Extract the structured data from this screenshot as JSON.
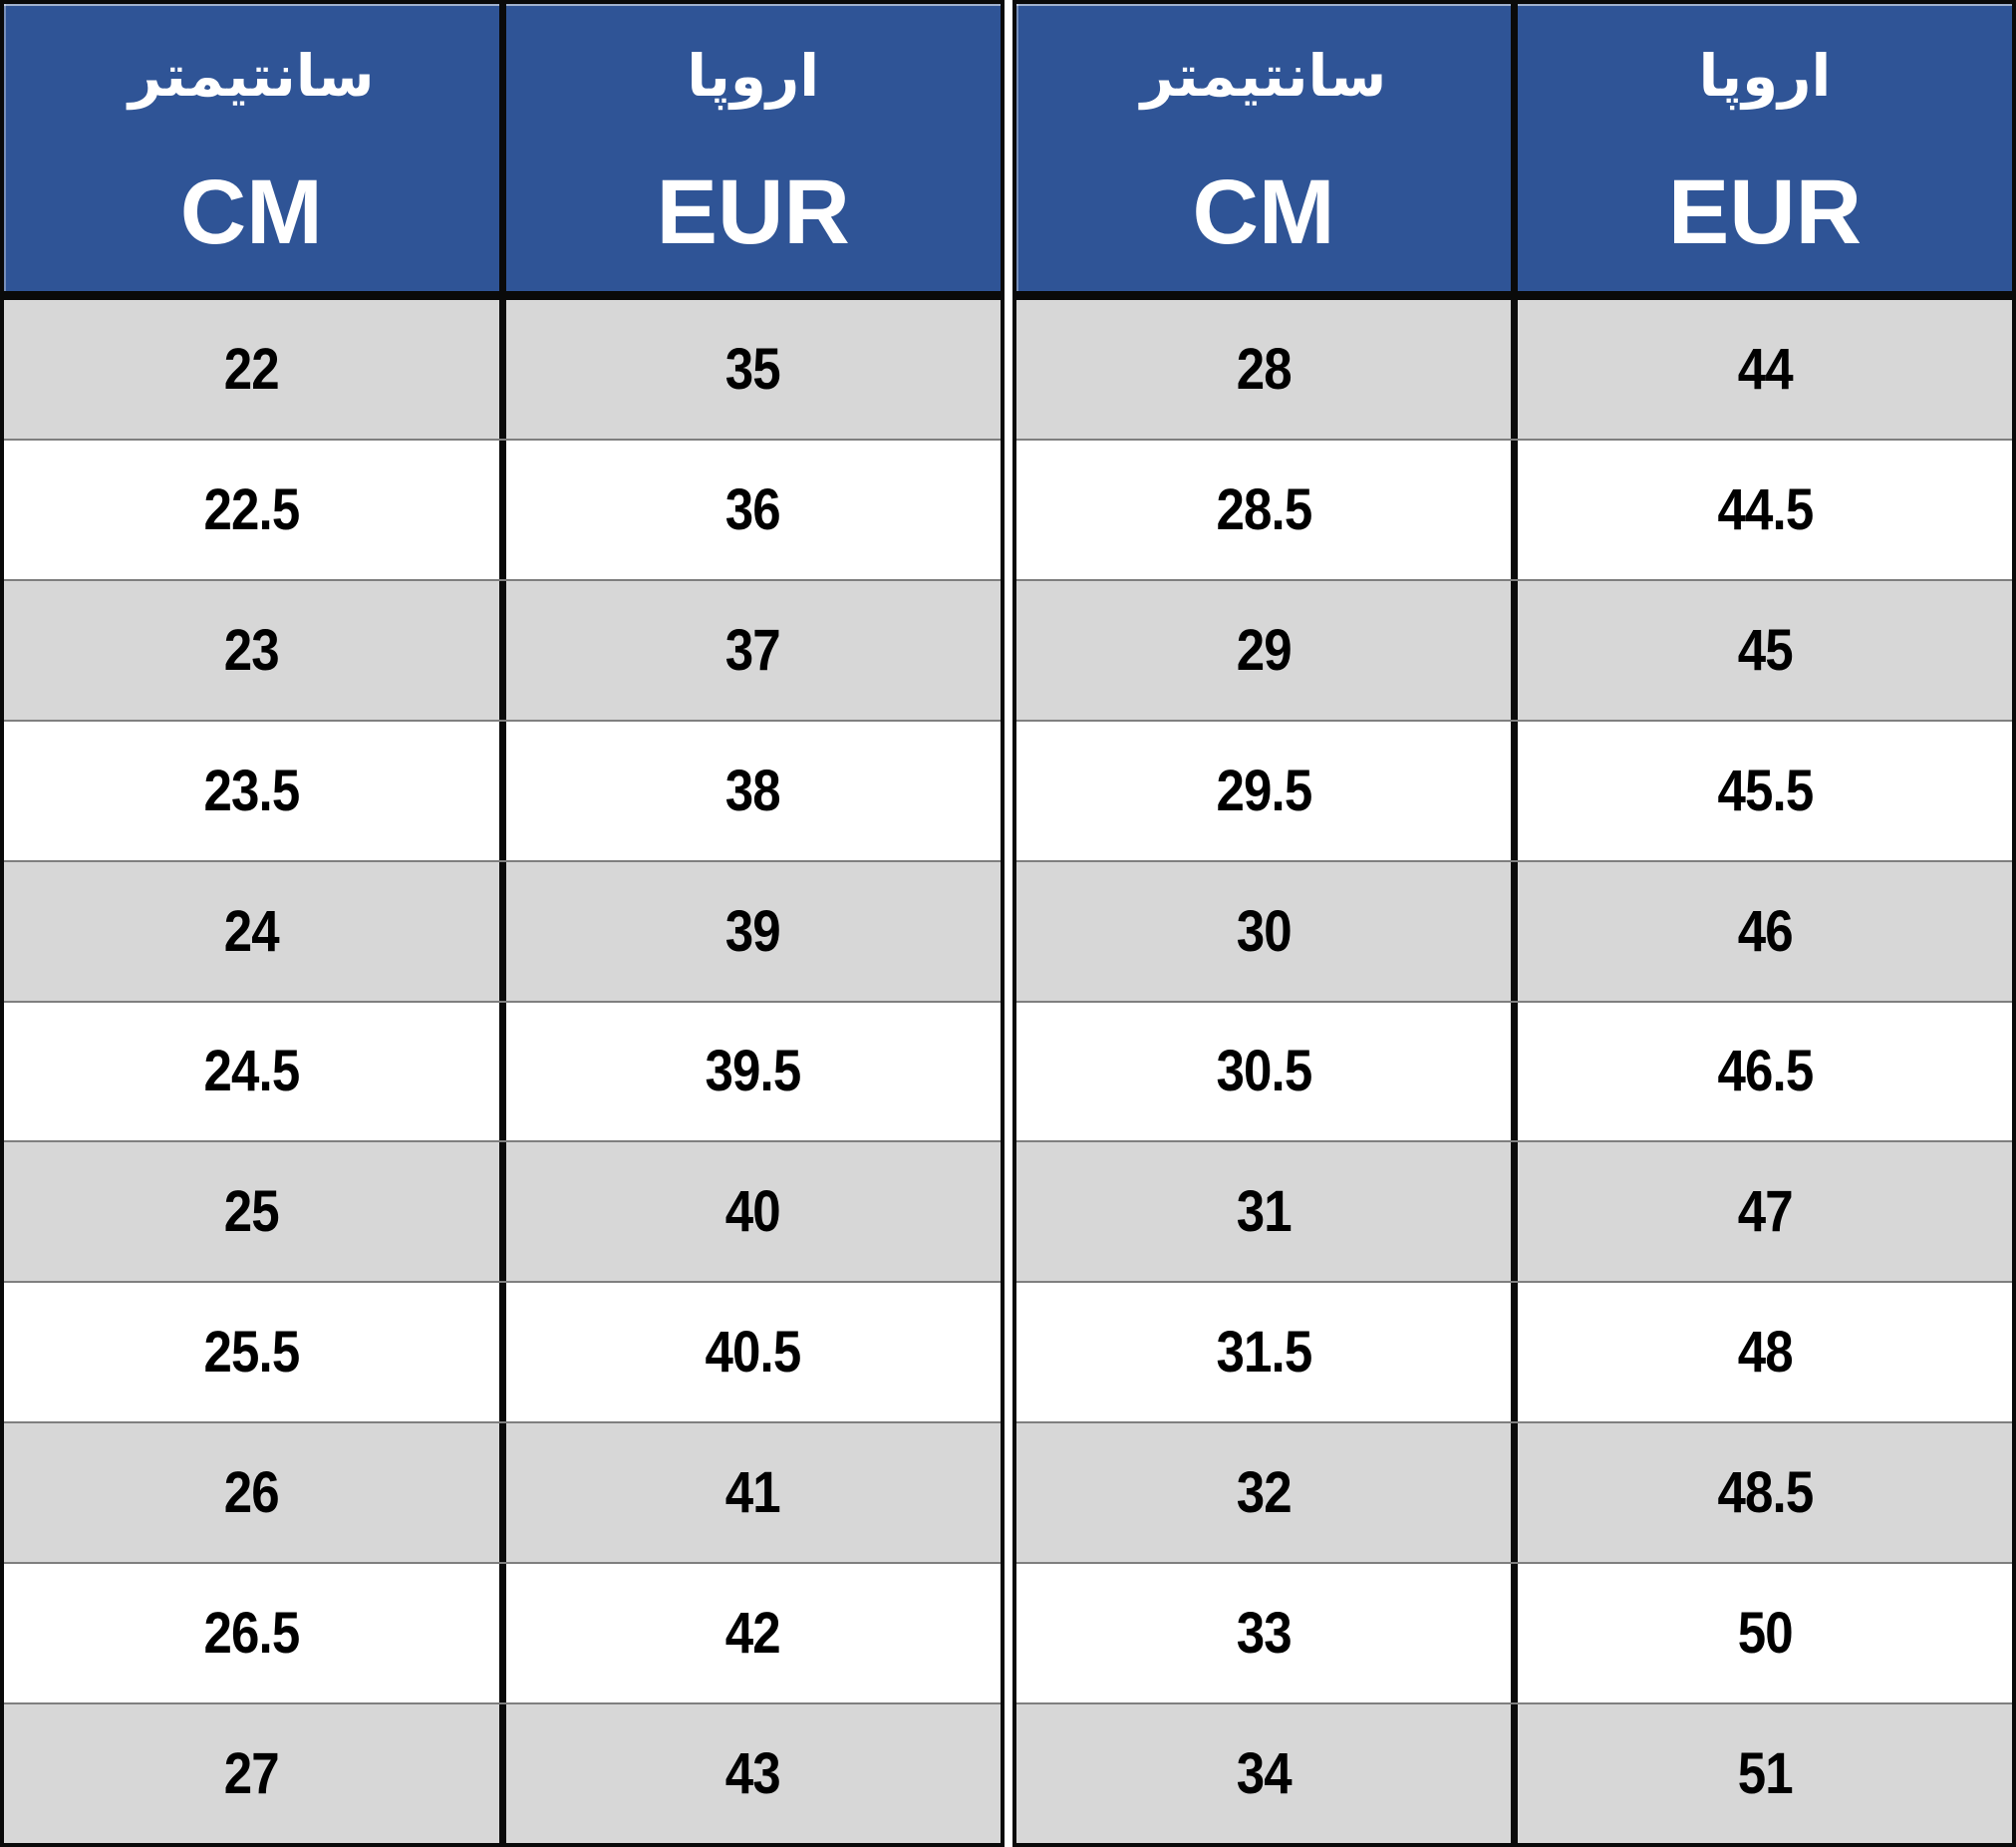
{
  "colors": {
    "header_bg": "#2F5496",
    "header_text": "#FFFFFF",
    "row_bg": "#FFFFFF",
    "alt_row_bg": "#D7D7D7",
    "grid_border": "#0A0A0A",
    "row_divider": "#7F7F7F",
    "value_text": "#000000"
  },
  "tables": [
    {
      "header": {
        "col1_fa": "سانتیمتر",
        "col1_en": "CM",
        "col2_fa": "اروپا",
        "col2_en": "EUR"
      },
      "rows": [
        {
          "cm": "22",
          "eur": "35"
        },
        {
          "cm": "22.5",
          "eur": "36"
        },
        {
          "cm": "23",
          "eur": "37"
        },
        {
          "cm": "23.5",
          "eur": "38"
        },
        {
          "cm": "24",
          "eur": "39"
        },
        {
          "cm": "24.5",
          "eur": "39.5"
        },
        {
          "cm": "25",
          "eur": "40"
        },
        {
          "cm": "25.5",
          "eur": "40.5"
        },
        {
          "cm": "26",
          "eur": "41"
        },
        {
          "cm": "26.5",
          "eur": "42"
        },
        {
          "cm": "27",
          "eur": "43"
        }
      ]
    },
    {
      "header": {
        "col1_fa": "سانتیمتر",
        "col1_en": "CM",
        "col2_fa": "اروپا",
        "col2_en": "EUR"
      },
      "rows": [
        {
          "cm": "28",
          "eur": "44"
        },
        {
          "cm": "28.5",
          "eur": "44.5"
        },
        {
          "cm": "29",
          "eur": "45"
        },
        {
          "cm": "29.5",
          "eur": "45.5"
        },
        {
          "cm": "30",
          "eur": "46"
        },
        {
          "cm": "30.5",
          "eur": "46.5"
        },
        {
          "cm": "31",
          "eur": "47"
        },
        {
          "cm": "31.5",
          "eur": "48"
        },
        {
          "cm": "32",
          "eur": "48.5"
        },
        {
          "cm": "33",
          "eur": "50"
        },
        {
          "cm": "34",
          "eur": "51"
        }
      ]
    }
  ],
  "chart_data": [
    {
      "type": "table",
      "columns": [
        "سانتیمتر CM",
        "اروپا EUR"
      ],
      "rows": [
        [
          22,
          35
        ],
        [
          22.5,
          36
        ],
        [
          23,
          37
        ],
        [
          23.5,
          38
        ],
        [
          24,
          39
        ],
        [
          24.5,
          39.5
        ],
        [
          25,
          40
        ],
        [
          25.5,
          40.5
        ],
        [
          26,
          41
        ],
        [
          26.5,
          42
        ],
        [
          27,
          43
        ]
      ]
    },
    {
      "type": "table",
      "columns": [
        "سانتیمتر CM",
        "اروپا EUR"
      ],
      "rows": [
        [
          28,
          44
        ],
        [
          28.5,
          44.5
        ],
        [
          29,
          45
        ],
        [
          29.5,
          45.5
        ],
        [
          30,
          46
        ],
        [
          30.5,
          46.5
        ],
        [
          31,
          47
        ],
        [
          31.5,
          48
        ],
        [
          32,
          48.5
        ],
        [
          33,
          50
        ],
        [
          34,
          51
        ]
      ]
    }
  ]
}
